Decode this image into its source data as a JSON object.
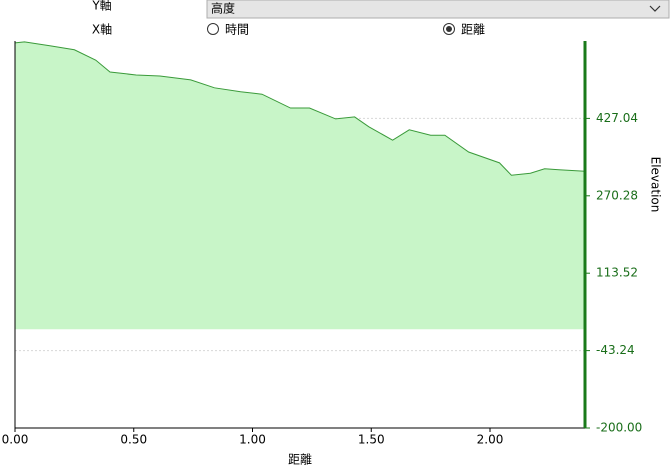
{
  "controls": {
    "y_axis_label": "Y軸",
    "y_axis_value": "高度",
    "x_axis_label": "X軸",
    "x_options": [
      "時間",
      "距離"
    ],
    "x_selected": 1
  },
  "chart_data": {
    "type": "area",
    "x_label": "距離",
    "y_label": "Elevation",
    "y_axis_side": "right",
    "color": "#3a9a3a",
    "fill_color": "#c8f5c8",
    "axis_color": "#1a7a1a",
    "grid": true,
    "x": [
      0,
      0.04,
      0.15,
      0.25,
      0.34,
      0.4,
      0.51,
      0.61,
      0.74,
      0.84,
      0.95,
      1.04,
      1.16,
      1.24,
      1.35,
      1.43,
      1.49,
      1.59,
      1.66,
      1.75,
      1.81,
      1.91,
      2.04,
      2.09,
      2.17,
      2.23,
      2.29,
      2.4
    ],
    "values": [
      580,
      582,
      574,
      566,
      545,
      521,
      515,
      513,
      505,
      489,
      481,
      476,
      448,
      448,
      426,
      430,
      410,
      383,
      404,
      393,
      393,
      359,
      337,
      312,
      316,
      325,
      323,
      320
    ],
    "xlim": [
      0,
      2.4
    ],
    "xticks": [
      {
        "value": 0,
        "label": "0.00"
      },
      {
        "value": 0.5,
        "label": "0.50"
      },
      {
        "value": 1,
        "label": "1.00"
      },
      {
        "value": 1.5,
        "label": "1.50"
      },
      {
        "value": 2,
        "label": "2.00"
      }
    ],
    "ylim": [
      -200,
      583.8
    ],
    "yticks": [
      {
        "value": -200,
        "label": "-200.00"
      },
      -43.24,
      113.52,
      270.28,
      427.04
    ]
  }
}
